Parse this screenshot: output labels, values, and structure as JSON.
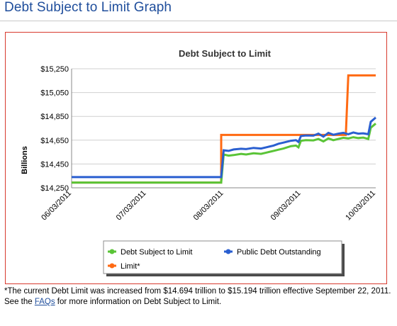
{
  "page": {
    "title": "Debt Subject to Limit Graph"
  },
  "footnote": {
    "text_before": "*The current Debt Limit was increased from $14.694 trillion to $15.194 trillion effective September 22, 2011. See the ",
    "link_text": "FAQs",
    "text_after": " for more information on Debt Subject to Limit."
  },
  "colors": {
    "debt": "#5ac437",
    "public": "#2a5fd0",
    "limit": "#ff6a13",
    "frame": "#d83a2e",
    "title": "#1f4e9c"
  },
  "chart_data": {
    "type": "line",
    "title": "Debt Subject to Limit",
    "ylabel": "Billions",
    "xlabel": "",
    "ylim": [
      14250,
      15250
    ],
    "yticks": [
      14250,
      14450,
      14650,
      14850,
      15050,
      15250
    ],
    "ytick_labels": [
      "$14,250",
      "$14,450",
      "$14,650",
      "$14,850",
      "$15,050",
      "$15,250"
    ],
    "xlim": [
      "2011-06-03",
      "2011-10-03"
    ],
    "xticks": [
      "2011-06-03",
      "2011-07-03",
      "2011-08-03",
      "2011-09-03",
      "2011-10-03"
    ],
    "xtick_labels": [
      "06/03/2011",
      "07/03/2011",
      "08/03/2011",
      "09/03/2011",
      "10/03/2011"
    ],
    "grid": "horizontal",
    "legend_position": "bottom",
    "series": [
      {
        "name": "Debt Subject to Limit",
        "color_key": "debt",
        "points": [
          [
            "2011-06-03",
            14294
          ],
          [
            "2011-08-01",
            14294
          ],
          [
            "2011-08-02",
            14294
          ],
          [
            "2011-08-03",
            14530
          ],
          [
            "2011-08-05",
            14520
          ],
          [
            "2011-08-07",
            14525
          ],
          [
            "2011-08-10",
            14535
          ],
          [
            "2011-08-12",
            14530
          ],
          [
            "2011-08-15",
            14540
          ],
          [
            "2011-08-18",
            14535
          ],
          [
            "2011-08-20",
            14545
          ],
          [
            "2011-08-23",
            14560
          ],
          [
            "2011-08-25",
            14570
          ],
          [
            "2011-08-27",
            14580
          ],
          [
            "2011-08-30",
            14600
          ],
          [
            "2011-09-01",
            14605
          ],
          [
            "2011-09-02",
            14590
          ],
          [
            "2011-09-03",
            14645
          ],
          [
            "2011-09-05",
            14650
          ],
          [
            "2011-09-08",
            14648
          ],
          [
            "2011-09-10",
            14660
          ],
          [
            "2011-09-12",
            14640
          ],
          [
            "2011-09-14",
            14665
          ],
          [
            "2011-09-16",
            14650
          ],
          [
            "2011-09-18",
            14660
          ],
          [
            "2011-09-20",
            14670
          ],
          [
            "2011-09-22",
            14665
          ],
          [
            "2011-09-24",
            14675
          ],
          [
            "2011-09-26",
            14668
          ],
          [
            "2011-09-28",
            14672
          ],
          [
            "2011-09-30",
            14660
          ],
          [
            "2011-10-01",
            14755
          ],
          [
            "2011-10-03",
            14790
          ]
        ]
      },
      {
        "name": "Public Debt Outstanding",
        "color_key": "public",
        "points": [
          [
            "2011-06-03",
            14340
          ],
          [
            "2011-08-01",
            14340
          ],
          [
            "2011-08-02",
            14340
          ],
          [
            "2011-08-03",
            14565
          ],
          [
            "2011-08-05",
            14560
          ],
          [
            "2011-08-07",
            14572
          ],
          [
            "2011-08-10",
            14578
          ],
          [
            "2011-08-12",
            14575
          ],
          [
            "2011-08-15",
            14585
          ],
          [
            "2011-08-18",
            14580
          ],
          [
            "2011-08-20",
            14590
          ],
          [
            "2011-08-23",
            14605
          ],
          [
            "2011-08-25",
            14620
          ],
          [
            "2011-08-27",
            14630
          ],
          [
            "2011-08-30",
            14645
          ],
          [
            "2011-09-01",
            14650
          ],
          [
            "2011-09-02",
            14635
          ],
          [
            "2011-09-03",
            14685
          ],
          [
            "2011-09-05",
            14690
          ],
          [
            "2011-09-08",
            14688
          ],
          [
            "2011-09-10",
            14705
          ],
          [
            "2011-09-12",
            14680
          ],
          [
            "2011-09-14",
            14712
          ],
          [
            "2011-09-16",
            14695
          ],
          [
            "2011-09-18",
            14705
          ],
          [
            "2011-09-20",
            14712
          ],
          [
            "2011-09-22",
            14700
          ],
          [
            "2011-09-24",
            14715
          ],
          [
            "2011-09-26",
            14705
          ],
          [
            "2011-09-28",
            14708
          ],
          [
            "2011-09-30",
            14700
          ],
          [
            "2011-10-01",
            14805
          ],
          [
            "2011-10-03",
            14840
          ]
        ]
      },
      {
        "name": "Limit*",
        "color_key": "limit",
        "points": [
          [
            "2011-06-03",
            14294
          ],
          [
            "2011-08-02",
            14294
          ],
          [
            "2011-08-02",
            14694
          ],
          [
            "2011-09-21",
            14694
          ],
          [
            "2011-09-22",
            15194
          ],
          [
            "2011-10-03",
            15194
          ]
        ]
      }
    ]
  }
}
